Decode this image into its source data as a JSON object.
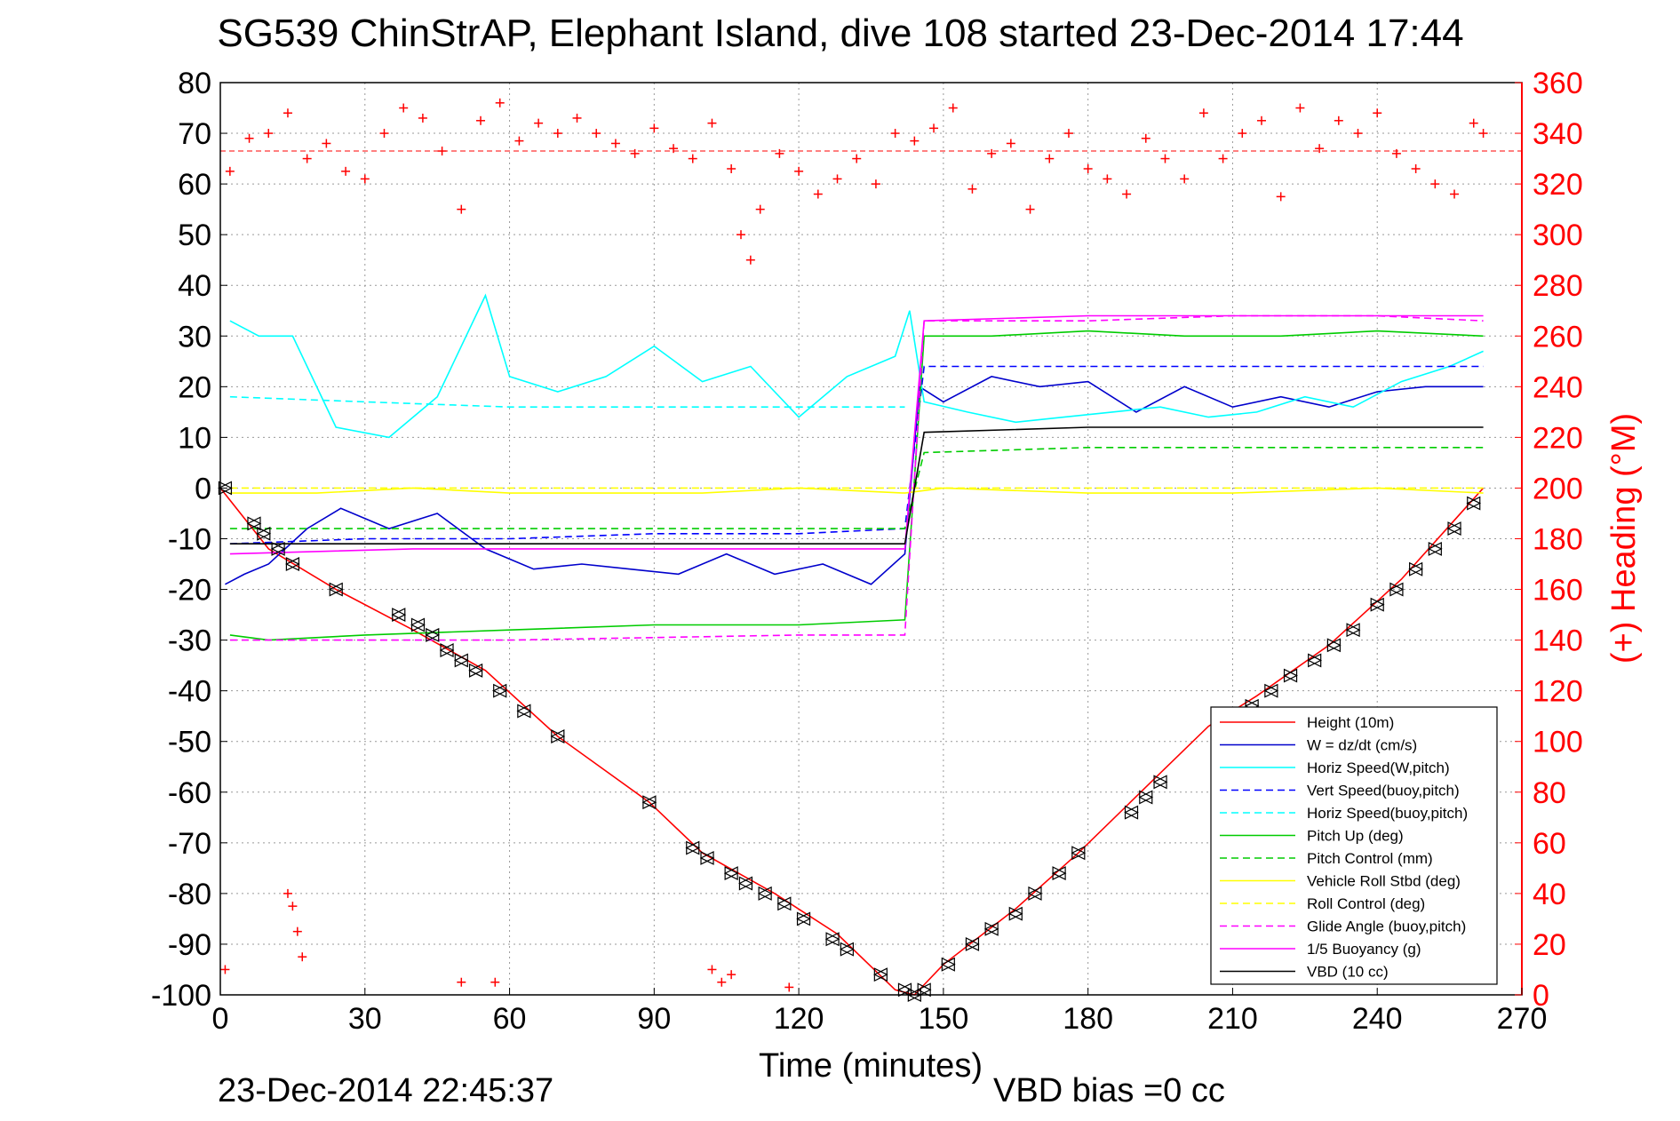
{
  "chart_data": {
    "type": "line",
    "title": "SG539 ChinStrAP, Elephant Island, dive 108 started 23-Dec-2014 17:44",
    "xlabel": "Time (minutes)",
    "ylabel_right": "(+) Heading (°M)",
    "xlim": [
      0,
      270
    ],
    "ylim": [
      -100,
      80
    ],
    "ylim_right": [
      0,
      360
    ],
    "x_ticks": [
      "0",
      "30",
      "60",
      "90",
      "120",
      "150",
      "180",
      "210",
      "240",
      "270"
    ],
    "y_ticks": [
      "-100",
      "-90",
      "-80",
      "-70",
      "-60",
      "-50",
      "-40",
      "-30",
      "-20",
      "-10",
      "0",
      "10",
      "20",
      "30",
      "40",
      "50",
      "60",
      "70",
      "80"
    ],
    "y2_ticks": [
      "0",
      "20",
      "40",
      "60",
      "80",
      "100",
      "120",
      "140",
      "160",
      "180",
      "200",
      "220",
      "240",
      "260",
      "280",
      "300",
      "320",
      "340",
      "360"
    ],
    "grid": true,
    "legend_position": "bottom-right",
    "footer_left": "23-Dec-2014 22:45:37",
    "footer_center": "VBD bias =0 cc",
    "series": [
      {
        "name": "Height (10m)",
        "color": "#ff0000",
        "style": "solid",
        "x": [
          0,
          10,
          24,
          40,
          55,
          70,
          89,
          100,
          115,
          128,
          140,
          144,
          150,
          165,
          178,
          192,
          205,
          215,
          230,
          245,
          262
        ],
        "y": [
          0,
          -12,
          -20,
          -28,
          -36,
          -49,
          -62,
          -72,
          -80,
          -88,
          -99,
          -100,
          -94,
          -83,
          -72,
          -59,
          -47,
          -41,
          -31,
          -18,
          0
        ]
      },
      {
        "name": "W = dz/dt (cm/s)",
        "color": "#0000cc",
        "style": "solid",
        "x": [
          1,
          5,
          10,
          18,
          25,
          35,
          45,
          55,
          65,
          75,
          85,
          95,
          105,
          115,
          125,
          135,
          142,
          145,
          150,
          160,
          170,
          180,
          190,
          200,
          210,
          220,
          230,
          240,
          250,
          262
        ],
        "y": [
          -19,
          -17,
          -15,
          -8,
          -4,
          -8,
          -5,
          -12,
          -16,
          -15,
          -16,
          -17,
          -13,
          -17,
          -15,
          -19,
          -13,
          20,
          17,
          22,
          20,
          21,
          15,
          20,
          16,
          18,
          16,
          19,
          20,
          20
        ]
      },
      {
        "name": "Horiz Speed(W,pitch)",
        "color": "#00ffff",
        "style": "solid",
        "x": [
          2,
          8,
          15,
          24,
          35,
          45,
          55,
          60,
          70,
          80,
          90,
          100,
          110,
          120,
          130,
          140,
          143,
          146,
          155,
          165,
          175,
          185,
          195,
          205,
          215,
          225,
          235,
          245,
          255,
          262
        ],
        "y": [
          33,
          30,
          30,
          12,
          10,
          18,
          38,
          22,
          19,
          22,
          28,
          21,
          24,
          14,
          22,
          26,
          35,
          17,
          15,
          13,
          14,
          15,
          16,
          14,
          15,
          18,
          16,
          21,
          24,
          27
        ]
      },
      {
        "name": "Vert Speed(buoy,pitch)",
        "color": "#0000ff",
        "style": "dashed",
        "x": [
          2,
          30,
          60,
          90,
          120,
          142,
          146,
          180,
          210,
          240,
          262
        ],
        "y": [
          -11,
          -10,
          -10,
          -9,
          -9,
          -8,
          24,
          24,
          24,
          24,
          24
        ]
      },
      {
        "name": "Horiz Speed(buoy,pitch)",
        "color": "#00ffff",
        "style": "dashed",
        "x": [
          2,
          30,
          60,
          90,
          120,
          142
        ],
        "y": [
          18,
          17,
          16,
          16,
          16,
          16
        ]
      },
      {
        "name": "Pitch Up (deg)",
        "color": "#00cc00",
        "style": "solid",
        "x": [
          2,
          10,
          30,
          60,
          90,
          120,
          142,
          146,
          160,
          180,
          200,
          220,
          240,
          262
        ],
        "y": [
          -29,
          -30,
          -29,
          -28,
          -27,
          -27,
          -26,
          30,
          30,
          31,
          30,
          30,
          31,
          30
        ]
      },
      {
        "name": "Pitch Control (mm)",
        "color": "#00cc00",
        "style": "dashed",
        "x": [
          2,
          60,
          120,
          142,
          146,
          180,
          210,
          240,
          262
        ],
        "y": [
          -8,
          -8,
          -8,
          -8,
          7,
          8,
          8,
          8,
          8
        ]
      },
      {
        "name": "Vehicle Roll Stbd (deg)",
        "color": "#ffff00",
        "style": "solid",
        "x": [
          2,
          20,
          40,
          60,
          80,
          100,
          120,
          142,
          150,
          180,
          210,
          240,
          262
        ],
        "y": [
          -1,
          -1,
          0,
          -1,
          -1,
          -1,
          0,
          -1,
          0,
          -1,
          -1,
          0,
          -1
        ]
      },
      {
        "name": "Roll Control (deg)",
        "color": "#ffff00",
        "style": "dashed",
        "x": [
          2,
          60,
          120,
          142,
          150,
          210,
          262
        ],
        "y": [
          0,
          0,
          0,
          0,
          0,
          0,
          0
        ]
      },
      {
        "name": "Glide Angle (buoy,pitch)",
        "color": "#ff00ff",
        "style": "dashed",
        "x": [
          2,
          60,
          120,
          142,
          146,
          180,
          210,
          240,
          262
        ],
        "y": [
          -30,
          -30,
          -29,
          -29,
          33,
          33,
          34,
          34,
          33
        ]
      },
      {
        "name": "1/5 Buoyancy (g)",
        "color": "#ff00ff",
        "style": "solid",
        "x": [
          2,
          40,
          90,
          142,
          146,
          180,
          220,
          262
        ],
        "y": [
          -13,
          -12,
          -12,
          -12,
          33,
          34,
          34,
          34
        ]
      },
      {
        "name": "VBD (10 cc)",
        "color": "#000000",
        "style": "solid",
        "x": [
          2,
          40,
          90,
          142,
          146,
          180,
          210,
          240,
          262
        ],
        "y": [
          -11,
          -11,
          -11,
          -11,
          11,
          12,
          12,
          12,
          12
        ]
      }
    ],
    "heading": {
      "name": "Heading",
      "color": "#ff0000",
      "marker": "+",
      "axis": "right",
      "mean": 333,
      "x": [
        2,
        6,
        10,
        14,
        18,
        22,
        26,
        30,
        34,
        38,
        42,
        46,
        50,
        54,
        58,
        62,
        66,
        70,
        74,
        78,
        82,
        86,
        90,
        94,
        98,
        102,
        106,
        108,
        110,
        112,
        116,
        120,
        124,
        128,
        132,
        136,
        140,
        144,
        148,
        152,
        156,
        160,
        164,
        168,
        172,
        176,
        180,
        184,
        188,
        192,
        196,
        200,
        204,
        208,
        212,
        216,
        220,
        224,
        228,
        232,
        236,
        240,
        244,
        248,
        252,
        256,
        260,
        262
      ],
      "y": [
        325,
        338,
        340,
        348,
        330,
        336,
        325,
        322,
        340,
        350,
        346,
        333,
        310,
        345,
        352,
        337,
        344,
        340,
        346,
        340,
        336,
        332,
        342,
        334,
        330,
        344,
        326,
        300,
        290,
        310,
        332,
        325,
        316,
        322,
        330,
        320,
        340,
        337,
        342,
        350,
        318,
        332,
        336,
        310,
        330,
        340,
        326,
        322,
        316,
        338,
        330,
        322,
        348,
        330,
        340,
        345,
        315,
        350,
        334,
        345,
        340,
        348,
        332,
        326,
        320,
        316,
        344,
        340
      ]
    },
    "heading_low": {
      "x": [
        1,
        14,
        15,
        16,
        17,
        50,
        57,
        102,
        104,
        106,
        118
      ],
      "y": [
        10,
        40,
        35,
        25,
        15,
        5,
        5,
        10,
        5,
        8,
        3
      ]
    },
    "markers": {
      "name": "triangles",
      "color": "#000000",
      "x": [
        1,
        7,
        9,
        12,
        15,
        24,
        37,
        41,
        44,
        47,
        50,
        53,
        58,
        63,
        70,
        89,
        98,
        101,
        106,
        109,
        113,
        117,
        121,
        127,
        130,
        137,
        142,
        144,
        146,
        151,
        156,
        160,
        165,
        169,
        174,
        178,
        189,
        192,
        195,
        214,
        218,
        222,
        227,
        231,
        235,
        240,
        244,
        248,
        252,
        256,
        260
      ],
      "y": [
        0,
        -7,
        -9,
        -12,
        -15,
        -20,
        -25,
        -27,
        -29,
        -32,
        -34,
        -36,
        -40,
        -44,
        -49,
        -62,
        -71,
        -73,
        -76,
        -78,
        -80,
        -82,
        -85,
        -89,
        -91,
        -96,
        -99,
        -100,
        -99,
        -94,
        -90,
        -87,
        -84,
        -80,
        -76,
        -72,
        -64,
        -61,
        -58,
        -43,
        -40,
        -37,
        -34,
        -31,
        -28,
        -23,
        -20,
        -16,
        -12,
        -8,
        -3
      ]
    }
  }
}
